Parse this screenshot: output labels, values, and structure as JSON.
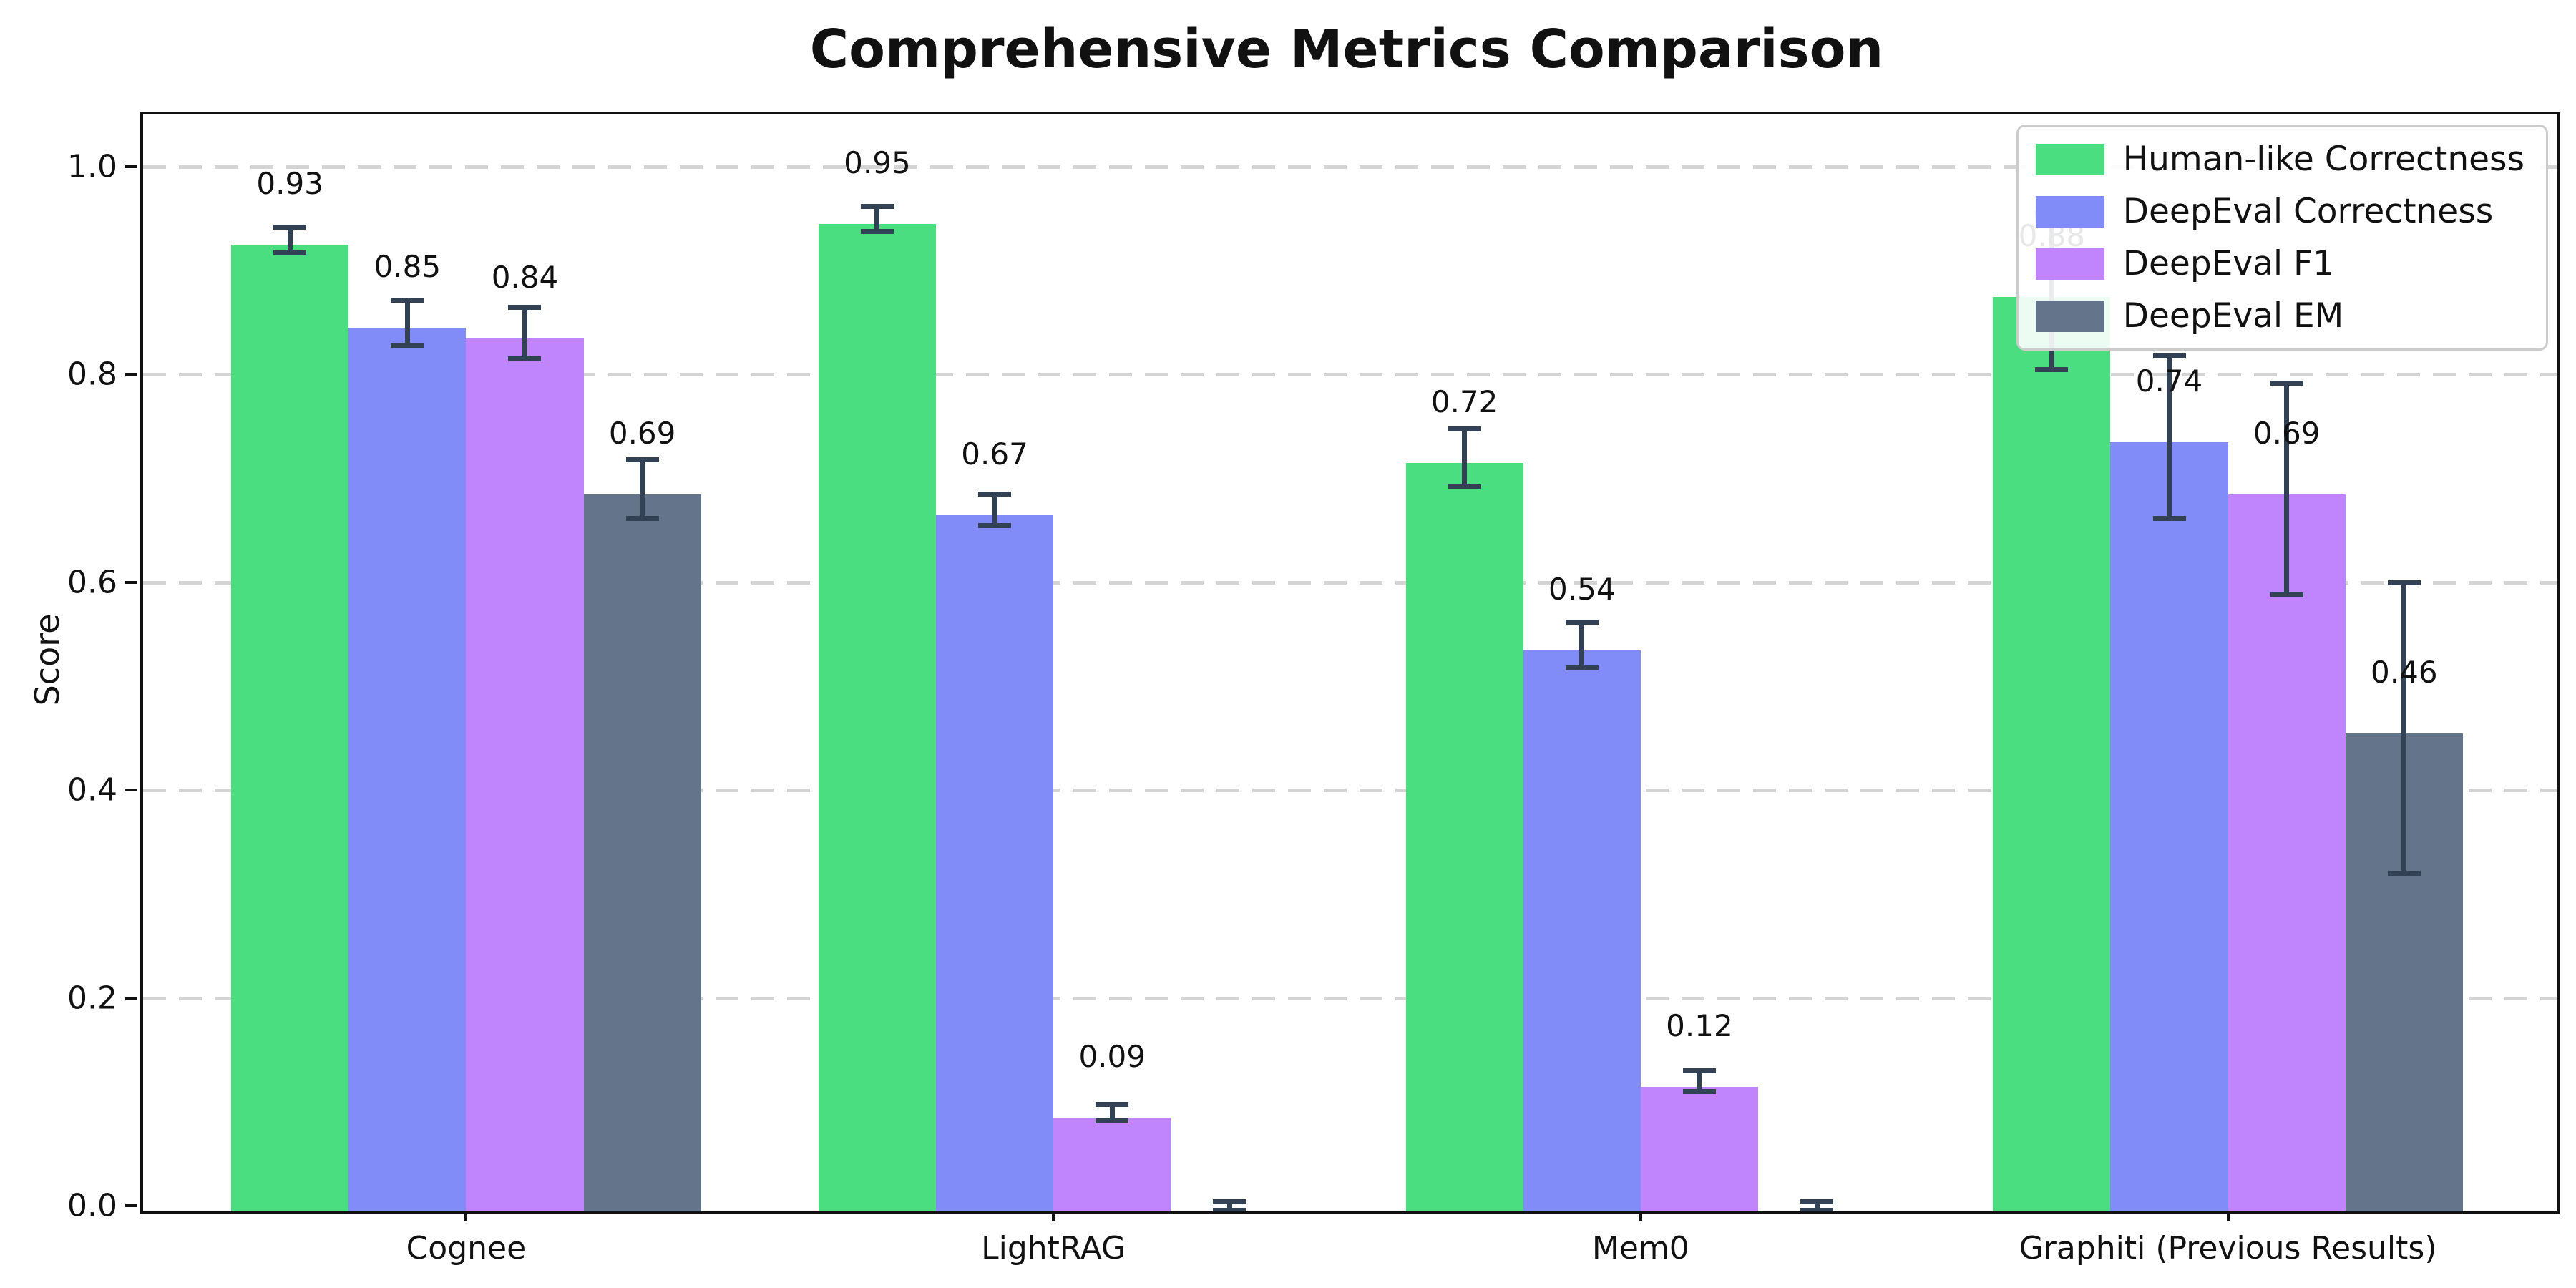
{
  "figure": {
    "background": "#ffffff",
    "axis_color": "#111111"
  },
  "chart_data": {
    "type": "bar",
    "title": "Comprehensive Metrics Comparison",
    "xlabel": "",
    "ylabel": "Score",
    "categories": [
      "Cognee",
      "LightRAG",
      "Mem0",
      "Graphiti (Previous Results)"
    ],
    "ylim": [
      0,
      1.05
    ],
    "yticks": [
      0,
      0.2,
      0.4,
      0.6,
      0.8,
      1.0
    ],
    "ytick_labels": [
      "0.0",
      "0.2",
      "0.4",
      "0.6",
      "0.8",
      "1.0"
    ],
    "grid": "horizontal-dashed",
    "gridline_color": "#d4d4d4",
    "legend_position": "upper-right",
    "error_bar_color": "#334155",
    "series": [
      {
        "name": "Human-like Correctness",
        "color": "#4ade80",
        "values": [
          0.93,
          0.95,
          0.72,
          0.88
        ],
        "errors": [
          0.012,
          0.012,
          0.028,
          0.075
        ],
        "bar_labels": [
          "0.93",
          "0.95",
          "0.72",
          "0.88"
        ]
      },
      {
        "name": "DeepEval Correctness",
        "color": "#818cf8",
        "values": [
          0.85,
          0.67,
          0.54,
          0.74
        ],
        "errors": [
          0.022,
          0.015,
          0.022,
          0.078
        ],
        "bar_labels": [
          "0.85",
          "0.67",
          "0.54",
          "0.74"
        ]
      },
      {
        "name": "DeepEval F1",
        "color": "#c084fc",
        "values": [
          0.84,
          0.09,
          0.12,
          0.69
        ],
        "errors": [
          0.025,
          0.008,
          0.01,
          0.102
        ],
        "bar_labels": [
          "0.84",
          "0.09",
          "0.12",
          "0.69"
        ]
      },
      {
        "name": "DeepEval EM",
        "color": "#64748b",
        "values": [
          0.69,
          0.0,
          0.0,
          0.46
        ],
        "errors": [
          0.028,
          0.004,
          0.004,
          0.14
        ],
        "bar_labels": [
          "0.69",
          "",
          "",
          "0.46"
        ]
      }
    ]
  }
}
